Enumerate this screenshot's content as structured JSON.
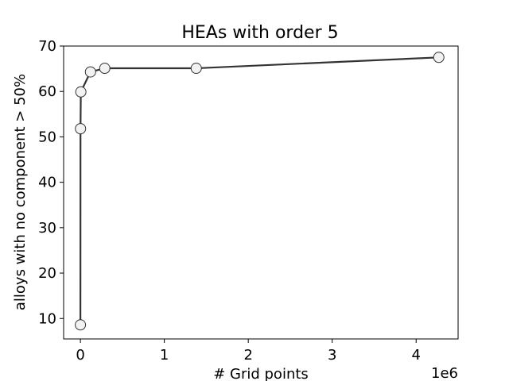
{
  "chart_data": {
    "type": "line",
    "title": "HEAs with order 5",
    "xlabel": "# Grid points",
    "ylabel": "alloys with no component > 50%",
    "x_offset_text": "1e6",
    "xlim": [
      -200000.0,
      4500000.0
    ],
    "ylim": [
      5.5,
      70
    ],
    "xticks": [
      0,
      1000000,
      2000000,
      3000000,
      4000000
    ],
    "xtick_labels": [
      "0",
      "1",
      "2",
      "3",
      "4"
    ],
    "yticks": [
      10,
      20,
      30,
      40,
      50,
      60,
      70
    ],
    "ytick_labels": [
      "10",
      "20",
      "30",
      "40",
      "50",
      "60",
      "70"
    ],
    "grid": false,
    "series": [
      {
        "x": [
          0,
          1000,
          5000,
          120000,
          290000,
          1380000,
          4270000
        ],
        "y": [
          8.6,
          51.8,
          59.9,
          64.3,
          65.1,
          65.1,
          67.5
        ]
      }
    ],
    "colors": {
      "line": "#333333",
      "marker_fill": "#f2f2f2",
      "marker_edge": "#333333"
    }
  }
}
